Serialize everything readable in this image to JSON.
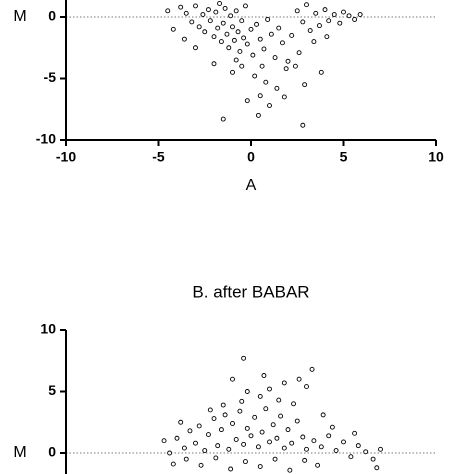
{
  "chart_data": [
    {
      "type": "scatter",
      "x_label": "A",
      "y_label": "M",
      "color": "#000000",
      "marker_fill": "#ffffff",
      "zero_line": true,
      "xlim": [
        -10,
        10
      ],
      "xticks": [
        -10,
        -5,
        0,
        5,
        10
      ],
      "ylim": [
        -10,
        10
      ],
      "yticks": [
        -10,
        -5,
        0
      ],
      "x": [
        -3.8,
        -3.5,
        -3.2,
        -3.0,
        -2.8,
        -2.6,
        -2.5,
        -2.3,
        -2.2,
        -2.0,
        -1.9,
        -1.8,
        -1.7,
        -1.6,
        -1.5,
        -1.4,
        -1.3,
        -1.2,
        -1.1,
        -1.0,
        -0.9,
        -0.8,
        -0.7,
        -0.6,
        -0.5,
        -0.4,
        -0.3,
        -0.2,
        0.0,
        0.1,
        0.3,
        0.5,
        0.7,
        0.9,
        1.1,
        1.3,
        1.5,
        1.7,
        2.0,
        2.2,
        2.5,
        2.8,
        3.0,
        3.2,
        3.5,
        3.7,
        4.0,
        4.2,
        4.5,
        4.8,
        5.0,
        5.3,
        5.6,
        5.9,
        3.4,
        4.1,
        2.6,
        3.8,
        2.9,
        1.9,
        -0.5,
        0.2,
        0.8,
        -1.0,
        1.4,
        0.5,
        -0.2,
        1.0,
        0.4,
        -1.5,
        2.8,
        -2.0,
        -3.0,
        -4.2,
        -4.5,
        -3.6,
        1.8,
        2.4,
        -0.8,
        0.6
      ],
      "values": [
        0.8,
        0.3,
        -0.4,
        0.9,
        -0.8,
        0.2,
        -1.2,
        0.6,
        -0.3,
        -1.6,
        0.4,
        -0.9,
        1.1,
        -2.0,
        -0.5,
        0.7,
        -1.4,
        -2.5,
        0.1,
        -0.8,
        -1.9,
        0.5,
        -1.2,
        -2.8,
        -0.3,
        -1.7,
        0.9,
        -2.2,
        -1.0,
        -3.1,
        -0.6,
        -1.8,
        -2.6,
        -0.2,
        -1.4,
        -3.3,
        -0.9,
        -2.1,
        -3.6,
        -1.5,
        0.5,
        -0.4,
        1.0,
        -1.1,
        0.3,
        -0.7,
        0.6,
        -0.3,
        0.2,
        -0.5,
        0.4,
        0.1,
        -0.2,
        0.2,
        -2.0,
        -1.6,
        -2.9,
        -4.5,
        -5.5,
        -4.2,
        -4.0,
        -4.8,
        -5.3,
        -4.5,
        -5.8,
        -6.4,
        -6.8,
        -7.2,
        -8.0,
        -8.3,
        -8.8,
        -3.8,
        -2.5,
        -1.0,
        0.5,
        -1.8,
        -6.5,
        -4.0,
        -3.5,
        -4.0
      ]
    },
    {
      "type": "scatter",
      "title": "B. after BABAR",
      "y_label": "M",
      "color": "#000000",
      "marker_fill": "#ffffff",
      "zero_line": true,
      "xlim": [
        -10,
        10
      ],
      "ylim": [
        -10,
        10
      ],
      "yticks": [
        0,
        5,
        10
      ],
      "x": [
        -4.0,
        -3.6,
        -3.3,
        -3.0,
        -2.8,
        -2.5,
        -2.3,
        -2.0,
        -1.8,
        -1.6,
        -1.4,
        -1.2,
        -1.0,
        -0.8,
        -0.6,
        -0.4,
        -0.2,
        0.0,
        0.2,
        0.4,
        0.6,
        0.8,
        1.0,
        1.2,
        1.4,
        1.6,
        1.8,
        2.0,
        2.2,
        2.5,
        2.8,
        3.0,
        -3.5,
        -2.7,
        -1.9,
        -1.1,
        -0.3,
        0.5,
        1.3,
        2.1,
        2.9,
        3.6,
        3.4,
        3.8,
        4.2,
        4.6,
        5.0,
        5.4,
        5.8,
        6.2,
        6.6,
        7.0,
        6.8,
        5.6,
        4.4,
        -0.5,
        0.5,
        1.5,
        -1.5,
        1.0,
        -0.2,
        2.3,
        3.0,
        -1.0,
        0.7,
        -0.4,
        3.3,
        2.6,
        1.8,
        -2.2,
        3.9,
        -4.4,
        -4.7,
        -4.2,
        -3.8
      ],
      "values": [
        1.2,
        0.4,
        1.8,
        0.8,
        2.2,
        0.2,
        1.5,
        2.8,
        0.6,
        1.9,
        3.1,
        0.3,
        2.4,
        1.1,
        3.4,
        0.7,
        2.0,
        1.4,
        2.9,
        0.5,
        1.7,
        3.6,
        0.9,
        2.3,
        1.2,
        3.0,
        0.4,
        1.9,
        0.8,
        2.6,
        1.3,
        0.3,
        -0.5,
        -1.0,
        -0.4,
        -1.3,
        -0.7,
        -1.1,
        -0.5,
        -1.4,
        -0.6,
        -1.0,
        1.0,
        0.5,
        1.4,
        0.2,
        0.9,
        -0.3,
        0.6,
        0.1,
        -0.5,
        0.3,
        -1.2,
        1.6,
        2.1,
        4.2,
        4.6,
        4.3,
        3.9,
        5.2,
        5.0,
        4.0,
        5.4,
        6.0,
        6.3,
        7.7,
        6.8,
        6.0,
        5.7,
        3.5,
        3.1,
        0.0,
        1.0,
        -0.9,
        2.5
      ]
    }
  ]
}
